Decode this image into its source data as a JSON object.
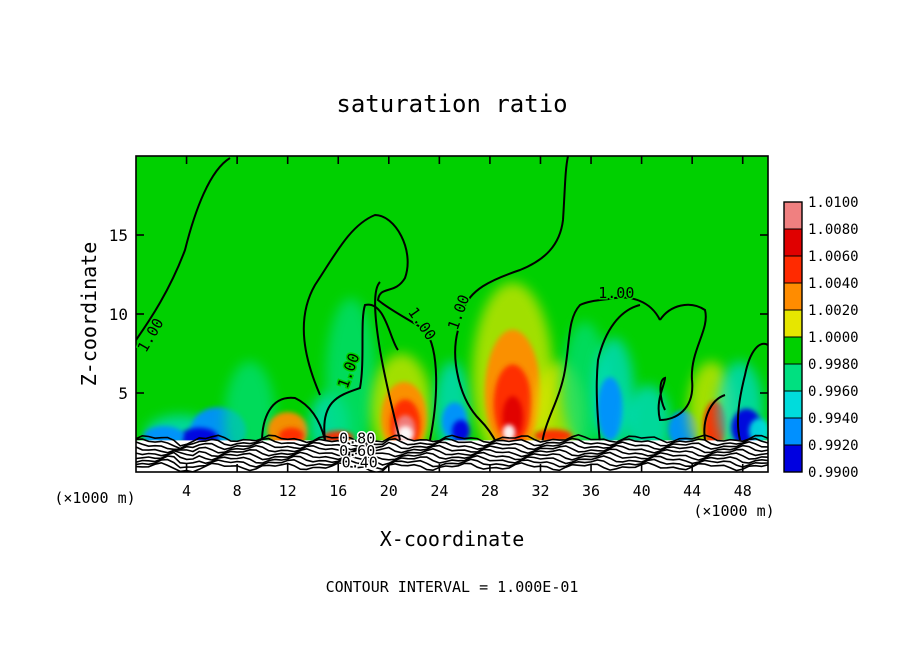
{
  "chart_data": {
    "type": "heatmap",
    "title": "saturation ratio",
    "xlabel": "X-coordinate",
    "ylabel": "Z-coordinate",
    "x_unit_left": "(×1000 m)",
    "x_unit_right": "(×1000 m)",
    "xlim": [
      0,
      50
    ],
    "ylim": [
      0,
      20
    ],
    "xticks": [
      "4",
      "8",
      "12",
      "16",
      "20",
      "24",
      "28",
      "32",
      "36",
      "40",
      "44",
      "48"
    ],
    "yticks": [
      "5",
      "10",
      "15"
    ],
    "colorbar": {
      "levels": [
        "1.0100",
        "1.0080",
        "1.0060",
        "1.0040",
        "1.0020",
        "1.0000",
        "0.9980",
        "0.9960",
        "0.9940",
        "0.9920",
        "0.9900"
      ],
      "colors": [
        "#f08080",
        "#e00000",
        "#ff2a00",
        "#ff8c00",
        "#e6e600",
        "#00d000",
        "#00e080",
        "#00dcdc",
        "#0090ff",
        "#0000e0",
        "#6000c0"
      ]
    },
    "background_value": "1.0000",
    "contour_labels": [
      {
        "text": "1.00",
        "x": 1.5,
        "y": 8.5
      },
      {
        "text": "1.00",
        "x": 17.2,
        "y": 6.3
      },
      {
        "text": "1.00",
        "x": 22.3,
        "y": 9.2
      },
      {
        "text": "1.00",
        "x": 25.9,
        "y": 10.0
      },
      {
        "text": "1.00",
        "x": 38.0,
        "y": 11.0
      },
      {
        "text": "0.80",
        "x": 17.5,
        "y": 1.8
      },
      {
        "text": "0.60",
        "x": 17.5,
        "y": 1.0
      },
      {
        "text": "0.40",
        "x": 17.7,
        "y": 0.3
      }
    ],
    "contour_interval_text": "CONTOUR INTERVAL = 1.000E-01"
  }
}
